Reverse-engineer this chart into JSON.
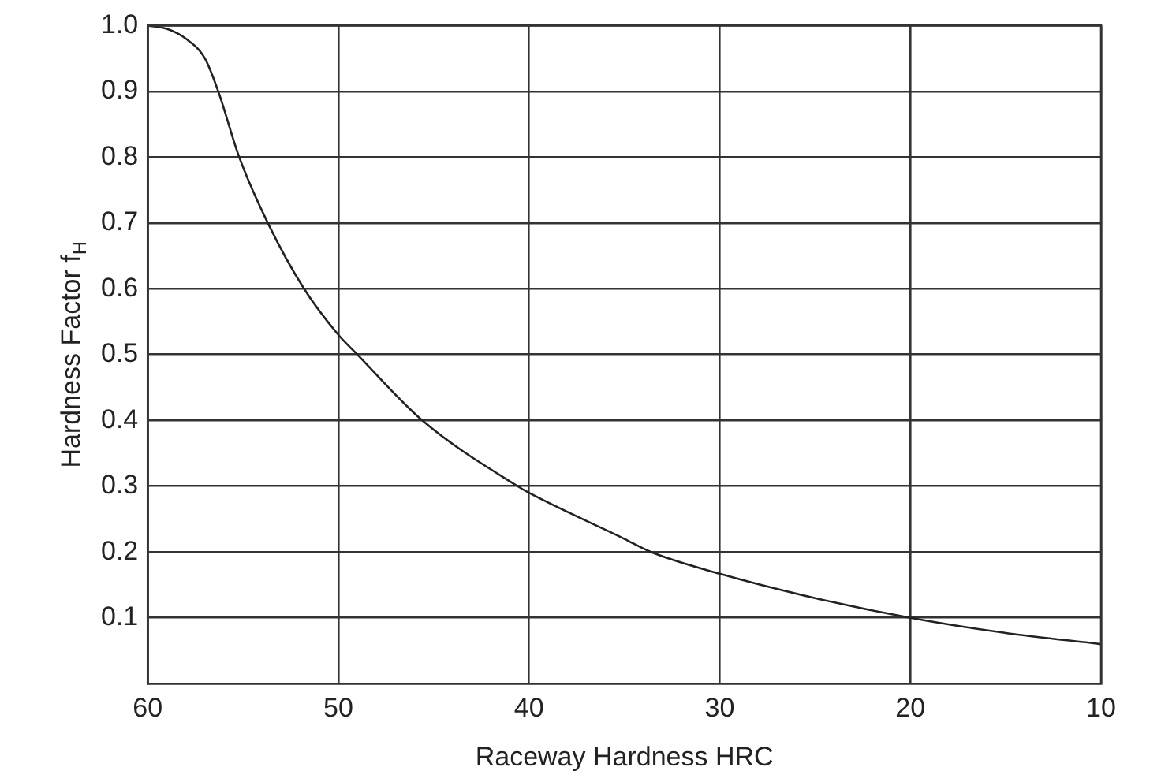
{
  "chart_data": {
    "type": "line",
    "xlabel": "Raceway Hardness HRC",
    "ylabel": "Hardness Factor f$_{H}$",
    "x": [
      60,
      59,
      58,
      57,
      56.3,
      55.2,
      53.7,
      51.8,
      50,
      49,
      45.6,
      40.6,
      40,
      35,
      33.6,
      30,
      25,
      20,
      15,
      10
    ],
    "series": [
      {
        "color": "#222222",
        "values": [
          1.0,
          0.995,
          0.98,
          0.95,
          0.9,
          0.8,
          0.7,
          0.6,
          0.53,
          0.5,
          0.4,
          0.3,
          0.29,
          0.22,
          0.2,
          0.167,
          0.13,
          0.1,
          0.077,
          0.06
        ]
      }
    ],
    "xlim": [
      60,
      10
    ],
    "xticks": [
      60,
      50,
      40,
      30,
      20,
      10
    ],
    "ylim": [
      0,
      1
    ],
    "yticks": [
      0.1,
      0.2,
      0.3,
      0.4,
      0.5,
      0.6,
      0.7,
      0.8,
      0.9,
      {
        "value": 1,
        "label": "1.0"
      }
    ],
    "grid": true,
    "legend": false,
    "marker": "none",
    "line_style": "solid"
  }
}
